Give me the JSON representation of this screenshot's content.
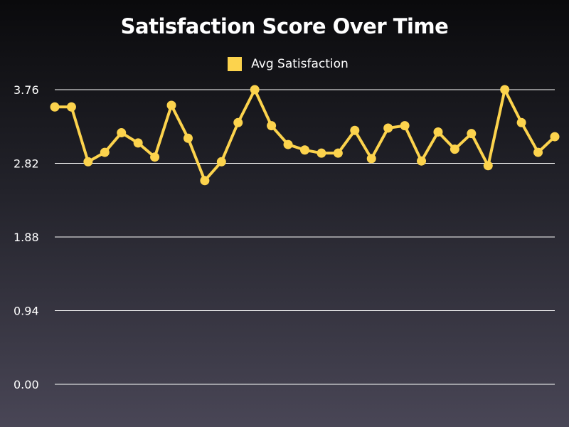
{
  "chart_data": {
    "type": "line",
    "title": "Satisfaction Score Over Time",
    "xlabel": "",
    "ylabel": "",
    "ylim": [
      0,
      3.76
    ],
    "yticks": [
      "0.00",
      "0.94",
      "1.88",
      "2.82",
      "3.76"
    ],
    "grid": true,
    "legend_position": "top-center",
    "series": [
      {
        "name": "Avg Satisfaction",
        "color": "#fcd34d",
        "values": [
          3.54,
          3.54,
          2.84,
          2.96,
          3.21,
          3.08,
          2.9,
          3.56,
          3.14,
          2.6,
          2.84,
          3.34,
          3.76,
          3.3,
          3.06,
          2.99,
          2.95,
          2.95,
          3.24,
          2.88,
          3.27,
          3.3,
          2.85,
          3.22,
          3.0,
          3.2,
          2.79,
          3.76,
          3.34,
          2.96,
          3.16
        ]
      }
    ]
  },
  "colors": {
    "line": "#fcd34d",
    "grid": "#ffffff",
    "text": "#ffffff"
  }
}
